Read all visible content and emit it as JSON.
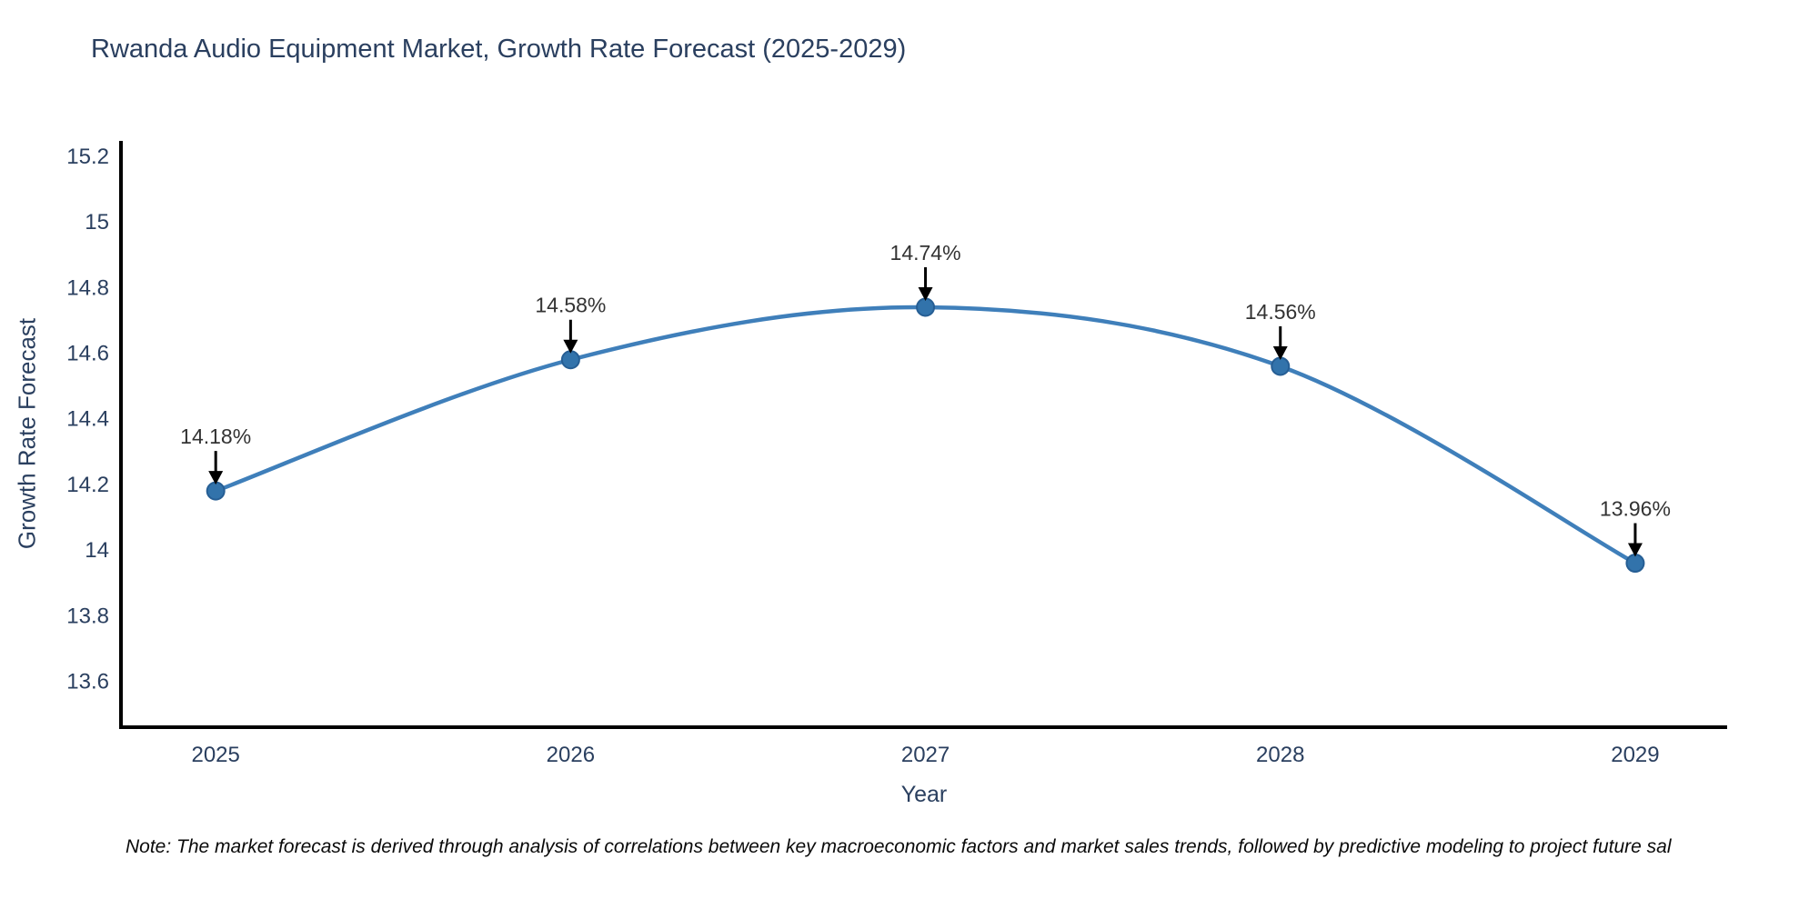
{
  "chart_data": {
    "type": "line",
    "title": "Rwanda Audio Equipment Market, Growth Rate Forecast (2025-2029)",
    "xlabel": "Year",
    "ylabel": "Growth Rate Forecast",
    "x": [
      2025,
      2026,
      2027,
      2028,
      2029
    ],
    "values": [
      14.18,
      14.58,
      14.74,
      14.56,
      13.96
    ],
    "point_labels": [
      "14.18%",
      "14.58%",
      "14.74%",
      "14.56%",
      "13.96%"
    ],
    "xtick_labels": [
      "2025",
      "2026",
      "2027",
      "2028",
      "2029"
    ],
    "ytick_values": [
      15.2,
      15.0,
      14.8,
      14.6,
      14.4,
      14.2,
      14.0,
      13.8,
      13.6
    ],
    "ytick_labels": [
      "15.2",
      "15",
      "14.8",
      "14.6",
      "14.4",
      "14.2",
      "14",
      "13.8",
      "13.6"
    ],
    "ylim": [
      13.46,
      15.247
    ],
    "xlim": [
      2024.733,
      2029.259
    ],
    "grid": false,
    "legend": false,
    "line_shape": "spline",
    "annotation_style": "down-arrow",
    "colors": {
      "line": "#3f7fba",
      "marker_fill": "#3273ab",
      "marker_edge": "#265e94",
      "axis_line": "#000000",
      "tick_text": "#2a3f5f",
      "title_text": "#2a3f5f",
      "annotation_text": "#333333",
      "annotation_arrow": "#000000",
      "background": "#ffffff"
    }
  },
  "footer": {
    "note": "Note: The market forecast is derived through analysis of correlations between key macroeconomic factors and market sales trends, followed by predictive modeling to project future sal"
  }
}
